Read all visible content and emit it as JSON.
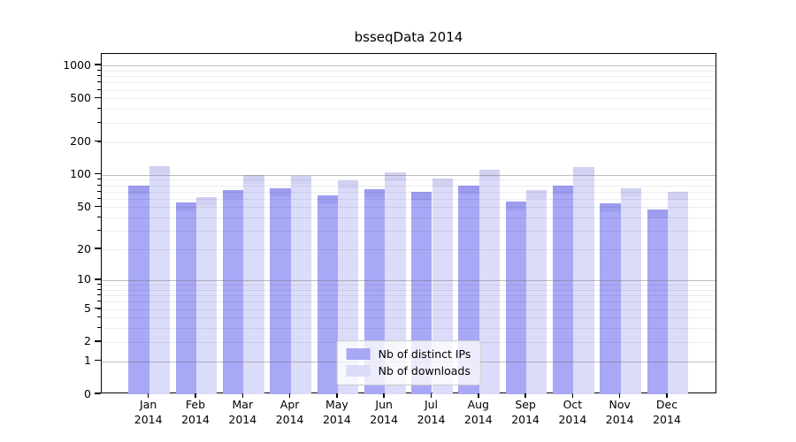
{
  "title": "bsseqData 2014",
  "chart_data": {
    "type": "bar",
    "title": "bsseqData 2014",
    "categories": [
      "Jan",
      "Feb",
      "Mar",
      "Apr",
      "May",
      "Jun",
      "Jul",
      "Aug",
      "Sep",
      "Oct",
      "Nov",
      "Dec"
    ],
    "x_year_label": "2014",
    "series": [
      {
        "name": "Nb of distinct IPs",
        "color": "#a8a8f6",
        "color_top": "#9d9df0",
        "values": [
          80,
          55,
          72,
          75,
          65,
          73,
          70,
          80,
          57,
          80,
          54,
          48
        ]
      },
      {
        "name": "Nb of downloads",
        "color": "#dbdbfa",
        "color_top": "#d1d1f3",
        "values": [
          120,
          62,
          99,
          97,
          89,
          106,
          93,
          111,
          72,
          117,
          75,
          70
        ]
      }
    ],
    "yscale": "log1p",
    "yticks": [
      0,
      1,
      2,
      5,
      10,
      20,
      50,
      100,
      200,
      500,
      1000
    ],
    "ylim": [
      0,
      1280
    ],
    "grid": true,
    "legend_position": "lower-center-inside",
    "colors": {
      "background": "#ffffff",
      "major_grid": "#b4b4b4",
      "minor_grid": "#ebebeb",
      "spine": "#000000"
    }
  }
}
